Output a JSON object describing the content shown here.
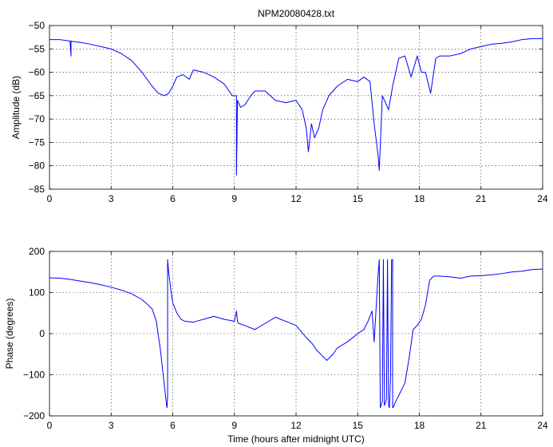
{
  "figure": {
    "title": "NPM20080428.txt"
  },
  "chart_data": [
    {
      "type": "line",
      "title": "NPM20080428.txt",
      "xlabel": "",
      "ylabel": "Amplitude (dB)",
      "xlim": [
        0,
        24
      ],
      "ylim": [
        -85,
        -50
      ],
      "xticks": [
        0,
        3,
        6,
        9,
        12,
        15,
        18,
        21,
        24
      ],
      "yticks": [
        -85,
        -80,
        -75,
        -70,
        -65,
        -60,
        -55,
        -50
      ],
      "grid": true,
      "color": "#0000ff",
      "series": [
        {
          "x": [
            0,
            0.5,
            1.0,
            1.05,
            1.05,
            1.1,
            1.5,
            2.0,
            2.5,
            3.0,
            3.5,
            4.0,
            4.5,
            5.0,
            5.3,
            5.6,
            5.8,
            6.0,
            6.2,
            6.5,
            6.8,
            7.0,
            7.5,
            8.0,
            8.5,
            8.9,
            9.1,
            9.1,
            9.15,
            9.3,
            9.5,
            9.8,
            10.0,
            10.5,
            11.0,
            11.5,
            12.0,
            12.3,
            12.5,
            12.6,
            12.75,
            12.9,
            13.1,
            13.3,
            13.6,
            14.0,
            14.5,
            15.0,
            15.3,
            15.6,
            15.8,
            16.0,
            16.05,
            16.2,
            16.5,
            16.7,
            17.0,
            17.3,
            17.6,
            17.9,
            18.1,
            18.3,
            18.55,
            18.8,
            19.0,
            19.5,
            20.0,
            20.5,
            21.0,
            21.5,
            22.0,
            22.5,
            23.0,
            23.5,
            24.0
          ],
          "values": [
            -53,
            -53,
            -53.3,
            -56.5,
            -53.3,
            -53.4,
            -53.6,
            -54,
            -54.5,
            -55,
            -56,
            -57.5,
            -60,
            -63,
            -64.5,
            -65,
            -64.5,
            -63,
            -61,
            -60.5,
            -61.5,
            -59.5,
            -60,
            -61,
            -62.5,
            -65,
            -65,
            -82,
            -66,
            -67.5,
            -67,
            -65,
            -64,
            -64,
            -66,
            -66.5,
            -66,
            -68,
            -72,
            -77,
            -71,
            -74,
            -72,
            -68,
            -65,
            -63,
            -61.5,
            -62,
            -61,
            -62,
            -71,
            -78,
            -81,
            -65,
            -68,
            -63,
            -57,
            -56.5,
            -61,
            -56.5,
            -60,
            -60,
            -64.5,
            -57,
            -56.5,
            -56.5,
            -56,
            -55,
            -54.5,
            -54,
            -53.8,
            -53.5,
            -53,
            -52.8,
            -52.8
          ]
        }
      ]
    },
    {
      "type": "line",
      "title": "",
      "xlabel": "Time (hours after midnight UTC)",
      "ylabel": "Phase (degrees)",
      "xlim": [
        0,
        24
      ],
      "ylim": [
        -200,
        200
      ],
      "xticks": [
        0,
        3,
        6,
        9,
        12,
        15,
        18,
        21,
        24
      ],
      "yticks": [
        -200,
        -100,
        0,
        100,
        200
      ],
      "grid": true,
      "color": "#0000ff",
      "series": [
        {
          "x": [
            0,
            0.5,
            1.0,
            1.5,
            2.0,
            2.5,
            3.0,
            3.5,
            4.0,
            4.5,
            4.8,
            5.0,
            5.2,
            5.4,
            5.6,
            5.7,
            5.72,
            5.75,
            5.75,
            5.8,
            5.9,
            6.0,
            6.2,
            6.4,
            6.6,
            7.0,
            7.5,
            8.0,
            8.5,
            9.0,
            9.1,
            9.15,
            9.2,
            9.5,
            10.0,
            10.5,
            11.0,
            11.5,
            12.0,
            12.5,
            12.8,
            13.0,
            13.3,
            13.5,
            13.8,
            14.0,
            14.5,
            15.0,
            15.3,
            15.5,
            15.7,
            15.8,
            16.0,
            16.05,
            16.1,
            16.2,
            16.25,
            16.3,
            16.4,
            16.45,
            16.5,
            16.55,
            16.6,
            16.65,
            16.7,
            16.7,
            16.75,
            16.8,
            17.0,
            17.3,
            17.5,
            17.7,
            17.9,
            18.1,
            18.3,
            18.5,
            18.7,
            19.0,
            19.5,
            20.0,
            20.5,
            21.0,
            21.5,
            22.0,
            22.5,
            23.0,
            23.5,
            24.0
          ],
          "values": [
            136,
            135,
            132,
            128,
            124,
            119,
            113,
            106,
            97,
            83,
            70,
            60,
            30,
            -40,
            -130,
            -175,
            -180,
            -150,
            180,
            150,
            110,
            75,
            50,
            35,
            30,
            28,
            35,
            42,
            35,
            30,
            55,
            30,
            25,
            20,
            10,
            25,
            40,
            30,
            20,
            -10,
            -25,
            -40,
            -55,
            -65,
            -50,
            -35,
            -20,
            0,
            10,
            30,
            55,
            -20,
            150,
            180,
            -180,
            -165,
            180,
            -175,
            -160,
            180,
            -175,
            -180,
            -100,
            180,
            180,
            -180,
            -178,
            -170,
            -150,
            -120,
            -60,
            10,
            20,
            35,
            70,
            130,
            140,
            140,
            138,
            135,
            140,
            141,
            143,
            146,
            150,
            152,
            156,
            157
          ]
        }
      ]
    }
  ]
}
